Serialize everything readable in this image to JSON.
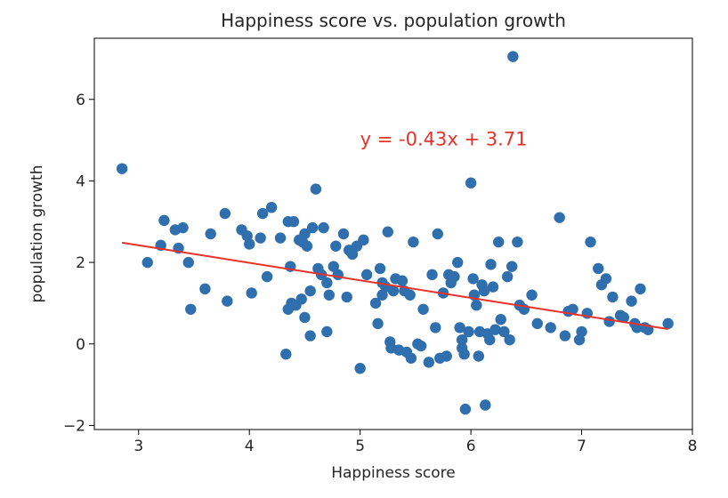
{
  "chart_data": {
    "type": "scatter",
    "title": "Happiness score vs. population growth",
    "xlabel": "Happiness score",
    "ylabel": "population growth",
    "xlim": [
      2.6,
      8.0
    ],
    "ylim": [
      -2.1,
      7.5
    ],
    "xticks": [
      3,
      4,
      5,
      6,
      7,
      8
    ],
    "yticks": [
      -2,
      0,
      2,
      4,
      6
    ],
    "xtick_labels": [
      "3",
      "4",
      "5",
      "6",
      "7",
      "8"
    ],
    "ytick_labels": [
      "−2",
      "0",
      "2",
      "4",
      "6"
    ],
    "grid": false,
    "point_color": "#2f6fae",
    "line_color": "#e8312a",
    "regression": {
      "slope": -0.43,
      "intercept": 3.71,
      "x_range": [
        2.85,
        7.78
      ],
      "label": "y = -0.43x + 3.71",
      "label_at": [
        5.0,
        5.05
      ]
    },
    "series": [
      {
        "points": [
          [
            2.85,
            4.3
          ],
          [
            3.08,
            2.0
          ],
          [
            3.2,
            2.42
          ],
          [
            3.23,
            3.03
          ],
          [
            3.33,
            2.8
          ],
          [
            3.36,
            2.35
          ],
          [
            3.4,
            2.85
          ],
          [
            3.45,
            2.0
          ],
          [
            3.47,
            0.85
          ],
          [
            3.6,
            1.35
          ],
          [
            3.65,
            2.7
          ],
          [
            3.78,
            3.2
          ],
          [
            3.8,
            1.05
          ],
          [
            3.93,
            2.8
          ],
          [
            3.98,
            2.65
          ],
          [
            4.0,
            2.45
          ],
          [
            4.02,
            1.25
          ],
          [
            4.1,
            2.6
          ],
          [
            4.12,
            3.2
          ],
          [
            4.16,
            1.65
          ],
          [
            4.2,
            3.35
          ],
          [
            4.28,
            2.6
          ],
          [
            4.33,
            -0.25
          ],
          [
            4.35,
            0.85
          ],
          [
            4.35,
            3.0
          ],
          [
            4.37,
            1.9
          ],
          [
            4.38,
            1.0
          ],
          [
            4.4,
            3.0
          ],
          [
            4.42,
            0.95
          ],
          [
            4.45,
            2.55
          ],
          [
            4.47,
            1.1
          ],
          [
            4.48,
            2.5
          ],
          [
            4.5,
            2.7
          ],
          [
            4.5,
            0.65
          ],
          [
            4.52,
            2.4
          ],
          [
            4.55,
            1.3
          ],
          [
            4.55,
            0.2
          ],
          [
            4.57,
            2.85
          ],
          [
            4.6,
            3.8
          ],
          [
            4.62,
            1.85
          ],
          [
            4.65,
            1.7
          ],
          [
            4.67,
            2.85
          ],
          [
            4.7,
            1.5
          ],
          [
            4.7,
            0.3
          ],
          [
            4.72,
            1.2
          ],
          [
            4.76,
            1.9
          ],
          [
            4.78,
            2.4
          ],
          [
            4.8,
            1.7
          ],
          [
            4.85,
            2.7
          ],
          [
            4.88,
            1.15
          ],
          [
            4.9,
            2.3
          ],
          [
            4.93,
            2.2
          ],
          [
            4.97,
            2.4
          ],
          [
            5.0,
            -0.6
          ],
          [
            5.03,
            2.55
          ],
          [
            5.06,
            1.7
          ],
          [
            5.14,
            1.0
          ],
          [
            5.16,
            0.5
          ],
          [
            5.18,
            1.85
          ],
          [
            5.2,
            1.5
          ],
          [
            5.2,
            1.2
          ],
          [
            5.23,
            1.4
          ],
          [
            5.25,
            2.75
          ],
          [
            5.27,
            0.05
          ],
          [
            5.28,
            -0.1
          ],
          [
            5.3,
            1.3
          ],
          [
            5.32,
            1.6
          ],
          [
            5.35,
            -0.15
          ],
          [
            5.38,
            1.55
          ],
          [
            5.4,
            1.3
          ],
          [
            5.42,
            -0.2
          ],
          [
            5.45,
            1.2
          ],
          [
            5.46,
            -0.35
          ],
          [
            5.48,
            2.5
          ],
          [
            5.52,
            0.0
          ],
          [
            5.55,
            -0.05
          ],
          [
            5.57,
            0.85
          ],
          [
            5.62,
            -0.45
          ],
          [
            5.65,
            1.7
          ],
          [
            5.68,
            0.4
          ],
          [
            5.7,
            2.7
          ],
          [
            5.72,
            -0.35
          ],
          [
            5.75,
            1.25
          ],
          [
            5.78,
            -0.3
          ],
          [
            5.8,
            1.7
          ],
          [
            5.82,
            1.5
          ],
          [
            5.85,
            1.65
          ],
          [
            5.88,
            2.0
          ],
          [
            5.9,
            0.4
          ],
          [
            5.92,
            0.1
          ],
          [
            5.92,
            -0.1
          ],
          [
            5.94,
            -0.25
          ],
          [
            5.95,
            -1.6
          ],
          [
            5.98,
            0.3
          ],
          [
            6.0,
            3.95
          ],
          [
            6.02,
            1.6
          ],
          [
            6.03,
            1.2
          ],
          [
            6.05,
            0.95
          ],
          [
            6.07,
            -0.3
          ],
          [
            6.08,
            0.3
          ],
          [
            6.1,
            1.45
          ],
          [
            6.12,
            1.3
          ],
          [
            6.13,
            -1.5
          ],
          [
            6.15,
            0.25
          ],
          [
            6.17,
            0.1
          ],
          [
            6.18,
            1.95
          ],
          [
            6.2,
            1.4
          ],
          [
            6.22,
            0.35
          ],
          [
            6.25,
            2.5
          ],
          [
            6.27,
            0.6
          ],
          [
            6.3,
            0.3
          ],
          [
            6.33,
            1.65
          ],
          [
            6.35,
            0.1
          ],
          [
            6.37,
            1.9
          ],
          [
            6.38,
            7.05
          ],
          [
            6.42,
            2.5
          ],
          [
            6.44,
            0.95
          ],
          [
            6.48,
            0.85
          ],
          [
            6.55,
            1.2
          ],
          [
            6.6,
            0.5
          ],
          [
            6.72,
            0.4
          ],
          [
            6.8,
            3.1
          ],
          [
            6.85,
            0.2
          ],
          [
            6.88,
            0.8
          ],
          [
            6.92,
            0.85
          ],
          [
            6.98,
            0.1
          ],
          [
            7.0,
            0.3
          ],
          [
            7.05,
            0.75
          ],
          [
            7.08,
            2.5
          ],
          [
            7.15,
            1.85
          ],
          [
            7.18,
            1.45
          ],
          [
            7.22,
            1.6
          ],
          [
            7.25,
            0.55
          ],
          [
            7.28,
            1.15
          ],
          [
            7.35,
            0.7
          ],
          [
            7.38,
            0.65
          ],
          [
            7.45,
            1.05
          ],
          [
            7.48,
            0.5
          ],
          [
            7.5,
            0.4
          ],
          [
            7.53,
            1.35
          ],
          [
            7.57,
            0.4
          ],
          [
            7.6,
            0.35
          ],
          [
            7.78,
            0.5
          ]
        ]
      }
    ]
  }
}
